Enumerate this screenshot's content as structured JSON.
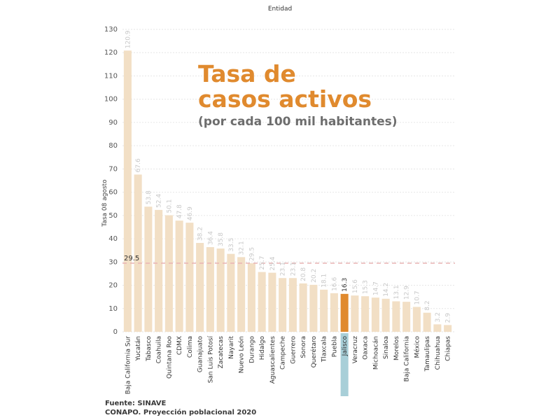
{
  "header": {
    "top_label": "Entidad"
  },
  "headline": {
    "line1": "Tasa de",
    "line2": "casos activos",
    "line3": "(por cada 100 mil habitantes)"
  },
  "source": {
    "line1": "Fuente: SINAVE",
    "line2": "CONAPO. Proyección poblacional 2020"
  },
  "colors": {
    "bar": "#f2dfc5",
    "highlight_bar": "#e08a2e",
    "highlight_tag": "#a8cfd8",
    "reference_line": "#e9b3b3",
    "title": "#e08a2e",
    "subtitle": "#6d6d6d",
    "grid": "#e6e6e6"
  },
  "chart_data": {
    "type": "bar",
    "xlabel": "Entidad",
    "ylabel": "Tasa 08 agosto",
    "ylim": [
      0,
      130
    ],
    "yticks": [
      0,
      10,
      20,
      30,
      40,
      50,
      60,
      70,
      80,
      90,
      100,
      110,
      120,
      130
    ],
    "grid": true,
    "highlight_category": "Jalisco",
    "reference_value": 29.5,
    "reference_label": "29.5",
    "categories": [
      "Baja California Sur",
      "Yucatán",
      "Tabasco",
      "Coahuila",
      "Quintana Roo",
      "CDMX",
      "Colima",
      "Guanajuato",
      "San Luis Potosí",
      "Zacatecas",
      "Nayarit",
      "Nuevo León",
      "Durango",
      "Hidalgo",
      "Aguascalientes",
      "Campeche",
      "Guerrero",
      "Sonora",
      "Querétaro",
      "Tlaxcala",
      "Puebla",
      "Jalisco",
      "Veracruz",
      "Oaxaca",
      "Michoacán",
      "Sinaloa",
      "Morelos",
      "Baja California",
      "México",
      "Tamaulipas",
      "Chihuahua",
      "Chiapas"
    ],
    "values": [
      120.9,
      67.6,
      53.8,
      52.4,
      50.1,
      47.8,
      46.9,
      38.2,
      36.4,
      35.8,
      33.5,
      32.1,
      29.5,
      25.7,
      25.4,
      23.1,
      23.1,
      20.8,
      20.2,
      18.1,
      16.6,
      16.3,
      15.6,
      15.3,
      14.7,
      14.2,
      13.1,
      12.9,
      10.7,
      8.2,
      3.2,
      2.9
    ],
    "value_labels": [
      "120.9",
      "67.6",
      "53.8",
      "52.4",
      "50.1",
      "47.8",
      "46.9",
      "38.2",
      "36.4",
      "35.8",
      "33.5",
      "32.1",
      "29.5",
      "25.7",
      "25.4",
      "23.1",
      "23.1",
      "20.8",
      "20.2",
      "18.1",
      "16.6",
      "16.3",
      "15.6",
      "15.3",
      "14.7",
      "14.2",
      "13.1",
      "12.9",
      "10.7",
      "8.2",
      "3.2",
      "2.9"
    ]
  }
}
